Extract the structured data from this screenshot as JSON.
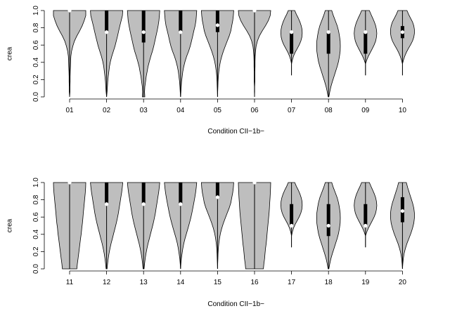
{
  "colors": {
    "violin_fill": "#bebebe",
    "stroke": "#000000",
    "median": "#ffffff"
  },
  "chart_data": [
    {
      "type": "violin",
      "xlabel": "Condition CII−1b−",
      "ylabel": "crea",
      "ylim": [
        0,
        1
      ],
      "yticks": [
        "0.0",
        "0.2",
        "0.4",
        "0.6",
        "0.8",
        "1.0"
      ],
      "ytick_values": [
        0,
        0.2,
        0.4,
        0.6,
        0.8,
        1.0
      ],
      "categories": [
        "01",
        "02",
        "03",
        "04",
        "05",
        "06",
        "07",
        "08",
        "09",
        "10"
      ],
      "violins": [
        {
          "min": 0.0,
          "max": 1.0,
          "q1": 1.0,
          "median": 1.0,
          "q3": 1.0,
          "widths": [
            0.0,
            0.02,
            0.02,
            0.03,
            0.03,
            0.04,
            0.05,
            0.06,
            0.08,
            0.12,
            0.2,
            0.3,
            0.45,
            0.62,
            0.78,
            0.9,
            1.0,
            1.0
          ]
        },
        {
          "min": 0.0,
          "max": 1.0,
          "q1": 0.75,
          "median": 0.75,
          "q3": 1.0,
          "widths": [
            0.0,
            0.03,
            0.05,
            0.07,
            0.1,
            0.14,
            0.18,
            0.24,
            0.32,
            0.42,
            0.52,
            0.6,
            0.68,
            0.75,
            0.82,
            0.9,
            0.98,
            1.0
          ]
        },
        {
          "min": 0.0,
          "max": 1.0,
          "q1": 0.63,
          "median": 0.75,
          "q3": 1.0,
          "widths": [
            0.08,
            0.06,
            0.08,
            0.12,
            0.16,
            0.22,
            0.28,
            0.36,
            0.45,
            0.55,
            0.63,
            0.7,
            0.77,
            0.84,
            0.9,
            0.95,
            0.98,
            1.0
          ]
        },
        {
          "min": 0.0,
          "max": 1.0,
          "q1": 0.75,
          "median": 0.75,
          "q3": 1.0,
          "widths": [
            0.0,
            0.02,
            0.04,
            0.06,
            0.1,
            0.14,
            0.2,
            0.28,
            0.38,
            0.5,
            0.6,
            0.68,
            0.75,
            0.82,
            0.9,
            0.95,
            0.98,
            1.0
          ]
        },
        {
          "min": 0.0,
          "max": 1.0,
          "q1": 0.75,
          "median": 0.83,
          "q3": 1.0,
          "widths": [
            0.0,
            0.01,
            0.02,
            0.03,
            0.05,
            0.08,
            0.12,
            0.18,
            0.26,
            0.36,
            0.48,
            0.6,
            0.72,
            0.82,
            0.88,
            0.94,
            0.98,
            1.0
          ]
        },
        {
          "min": 0.0,
          "max": 1.0,
          "q1": 1.0,
          "median": 1.0,
          "q3": 1.0,
          "widths": [
            0.0,
            0.01,
            0.01,
            0.02,
            0.02,
            0.02,
            0.03,
            0.03,
            0.04,
            0.06,
            0.1,
            0.18,
            0.3,
            0.48,
            0.68,
            0.85,
            0.97,
            1.0
          ]
        },
        {
          "min": 0.25,
          "max": 1.0,
          "q1": 0.5,
          "median": 0.75,
          "q3": 0.75,
          "widths": [
            0.0,
            0.0,
            0.0,
            0.0,
            0.05,
            0.12,
            0.22,
            0.35,
            0.48,
            0.58,
            0.64,
            0.66,
            0.65,
            0.6,
            0.52,
            0.42,
            0.3,
            0.2
          ]
        },
        {
          "min": 0.0,
          "max": 1.0,
          "q1": 0.5,
          "median": 0.75,
          "q3": 0.75,
          "widths": [
            0.02,
            0.08,
            0.15,
            0.24,
            0.34,
            0.44,
            0.54,
            0.62,
            0.68,
            0.72,
            0.73,
            0.72,
            0.68,
            0.62,
            0.54,
            0.42,
            0.3,
            0.2
          ]
        },
        {
          "min": 0.25,
          "max": 1.0,
          "q1": 0.5,
          "median": 0.75,
          "q3": 0.75,
          "widths": [
            0.0,
            0.0,
            0.0,
            0.0,
            0.08,
            0.18,
            0.3,
            0.42,
            0.54,
            0.63,
            0.68,
            0.7,
            0.68,
            0.63,
            0.55,
            0.45,
            0.34,
            0.24
          ]
        },
        {
          "min": 0.25,
          "max": 1.0,
          "q1": 0.68,
          "median": 0.75,
          "q3": 0.82,
          "widths": [
            0.0,
            0.0,
            0.0,
            0.0,
            0.06,
            0.14,
            0.24,
            0.36,
            0.5,
            0.62,
            0.7,
            0.74,
            0.74,
            0.7,
            0.62,
            0.5,
            0.38,
            0.28
          ]
        }
      ]
    },
    {
      "type": "violin",
      "xlabel": "Condition CII−1b−",
      "ylabel": "crea",
      "ylim": [
        0,
        1
      ],
      "yticks": [
        "0.0",
        "0.2",
        "0.4",
        "0.6",
        "0.8",
        "1.0"
      ],
      "ytick_values": [
        0,
        0.2,
        0.4,
        0.6,
        0.8,
        1.0
      ],
      "categories": [
        "11",
        "12",
        "13",
        "14",
        "15",
        "16",
        "17",
        "18",
        "19",
        "20"
      ],
      "violins": [
        {
          "min": 0.0,
          "max": 1.0,
          "q1": 1.0,
          "median": 1.0,
          "q3": 1.0,
          "widths": [
            0.45,
            0.48,
            0.52,
            0.56,
            0.6,
            0.64,
            0.68,
            0.72,
            0.75,
            0.79,
            0.82,
            0.85,
            0.88,
            0.91,
            0.94,
            0.97,
            0.99,
            1.0
          ]
        },
        {
          "min": 0.0,
          "max": 1.0,
          "q1": 0.75,
          "median": 0.75,
          "q3": 1.0,
          "widths": [
            0.03,
            0.06,
            0.1,
            0.15,
            0.21,
            0.28,
            0.36,
            0.44,
            0.52,
            0.6,
            0.67,
            0.73,
            0.78,
            0.83,
            0.88,
            0.93,
            0.97,
            1.0
          ]
        },
        {
          "min": 0.0,
          "max": 1.0,
          "q1": 0.75,
          "median": 0.75,
          "q3": 1.0,
          "widths": [
            0.03,
            0.06,
            0.1,
            0.15,
            0.21,
            0.28,
            0.36,
            0.44,
            0.52,
            0.6,
            0.67,
            0.73,
            0.78,
            0.83,
            0.88,
            0.93,
            0.97,
            1.0
          ]
        },
        {
          "min": 0.0,
          "max": 1.0,
          "q1": 0.75,
          "median": 0.75,
          "q3": 1.0,
          "widths": [
            0.0,
            0.02,
            0.05,
            0.09,
            0.14,
            0.2,
            0.28,
            0.37,
            0.46,
            0.55,
            0.63,
            0.7,
            0.76,
            0.82,
            0.88,
            0.93,
            0.97,
            1.0
          ]
        },
        {
          "min": 0.0,
          "max": 1.0,
          "q1": 0.83,
          "median": 0.83,
          "q3": 1.0,
          "widths": [
            0.0,
            0.01,
            0.02,
            0.03,
            0.05,
            0.08,
            0.12,
            0.18,
            0.26,
            0.36,
            0.48,
            0.6,
            0.72,
            0.82,
            0.88,
            0.94,
            0.98,
            1.0
          ]
        },
        {
          "min": 0.0,
          "max": 1.0,
          "q1": 1.0,
          "median": 1.0,
          "q3": 1.0,
          "widths": [
            0.55,
            0.58,
            0.62,
            0.65,
            0.68,
            0.72,
            0.75,
            0.78,
            0.81,
            0.84,
            0.87,
            0.9,
            0.92,
            0.94,
            0.96,
            0.98,
            0.99,
            1.0
          ]
        },
        {
          "min": 0.25,
          "max": 1.0,
          "q1": 0.5,
          "median": 0.5,
          "q3": 0.75,
          "widths": [
            0.0,
            0.0,
            0.0,
            0.0,
            0.05,
            0.12,
            0.22,
            0.35,
            0.48,
            0.58,
            0.64,
            0.66,
            0.65,
            0.6,
            0.52,
            0.42,
            0.3,
            0.2
          ]
        },
        {
          "min": 0.0,
          "max": 1.0,
          "q1": 0.38,
          "median": 0.5,
          "q3": 0.75,
          "widths": [
            0.02,
            0.08,
            0.15,
            0.24,
            0.34,
            0.44,
            0.54,
            0.62,
            0.68,
            0.72,
            0.73,
            0.72,
            0.68,
            0.62,
            0.54,
            0.42,
            0.3,
            0.2
          ]
        },
        {
          "min": 0.25,
          "max": 1.0,
          "q1": 0.5,
          "median": 0.5,
          "q3": 0.75,
          "widths": [
            0.0,
            0.0,
            0.0,
            0.0,
            0.08,
            0.18,
            0.3,
            0.42,
            0.54,
            0.63,
            0.68,
            0.7,
            0.68,
            0.63,
            0.55,
            0.45,
            0.34,
            0.24
          ]
        },
        {
          "min": 0.0,
          "max": 1.0,
          "q1": 0.54,
          "median": 0.67,
          "q3": 0.83,
          "widths": [
            0.0,
            0.02,
            0.05,
            0.1,
            0.18,
            0.28,
            0.4,
            0.52,
            0.62,
            0.7,
            0.74,
            0.74,
            0.7,
            0.62,
            0.52,
            0.42,
            0.32,
            0.24
          ]
        }
      ]
    }
  ]
}
